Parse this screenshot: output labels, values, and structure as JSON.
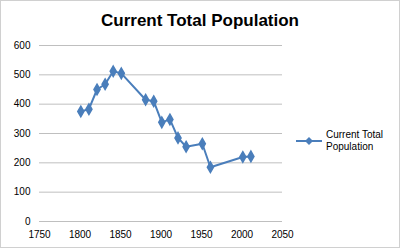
{
  "chart_data": {
    "type": "line",
    "title": "Current Total Population",
    "x": [
      1801,
      1811,
      1821,
      1831,
      1841,
      1851,
      1881,
      1891,
      1901,
      1911,
      1921,
      1931,
      1951,
      1961,
      2001,
      2011
    ],
    "series": [
      {
        "name": "Current Total Population",
        "color": "#4a7ebb",
        "marker": "diamond",
        "values": [
          375,
          383,
          450,
          468,
          512,
          505,
          415,
          410,
          338,
          348,
          285,
          255,
          265,
          185,
          220,
          222
        ]
      }
    ],
    "xlim": [
      1750,
      2050
    ],
    "xticks": [
      1750,
      1800,
      1850,
      1900,
      1950,
      2000,
      2050
    ],
    "ylim": [
      0,
      600
    ],
    "yticks": [
      0,
      100,
      200,
      300,
      400,
      500,
      600
    ],
    "grid": true,
    "legend": "right"
  }
}
